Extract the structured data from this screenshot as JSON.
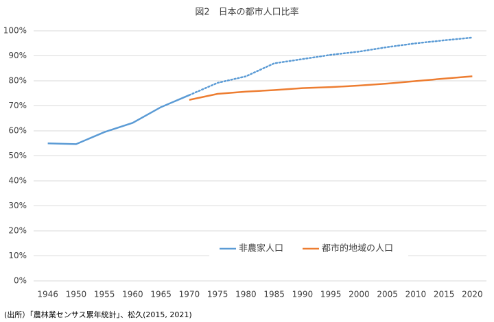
{
  "chart_data": {
    "type": "line",
    "title": "図2　日本の都市人口比率",
    "categories": [
      "1946",
      "1950",
      "1955",
      "1960",
      "1965",
      "1970",
      "1975",
      "1980",
      "1985",
      "1990",
      "1995",
      "2000",
      "2005",
      "2010",
      "2015",
      "2020"
    ],
    "series": [
      {
        "name": "非農家人口",
        "color": "#5b9bd5",
        "values": [
          55.0,
          54.7,
          59.5,
          63.2,
          69.5,
          74.3,
          79.2,
          81.8,
          87.0,
          88.7,
          90.4,
          91.7,
          93.5,
          95.0,
          96.2,
          97.3
        ],
        "styles": [
          "solid",
          "solid",
          "solid",
          "solid",
          "solid",
          "solid",
          "dotted",
          "dotted",
          "dotted",
          "dotted",
          "dotted",
          "dotted",
          "dotted",
          "dotted",
          "dotted",
          "dotted"
        ]
      },
      {
        "name": "都市的地域の人口",
        "color": "#ed7d31",
        "values": [
          null,
          null,
          null,
          null,
          null,
          72.4,
          74.8,
          75.7,
          76.3,
          77.1,
          77.5,
          78.1,
          78.9,
          79.9,
          80.9,
          81.8
        ],
        "styles": [
          "solid",
          "solid",
          "solid",
          "solid",
          "solid",
          "solid",
          "solid",
          "solid",
          "solid",
          "solid",
          "solid",
          "solid",
          "solid",
          "solid",
          "solid",
          "solid"
        ]
      }
    ],
    "ylim": [
      0,
      100
    ],
    "yticks": [
      {
        "value": 0,
        "label": "0%"
      },
      {
        "value": 10,
        "label": "10%"
      },
      {
        "value": 20,
        "label": "20%"
      },
      {
        "value": 30,
        "label": "30%"
      },
      {
        "value": 40,
        "label": "40%"
      },
      {
        "value": 50,
        "label": "50%"
      },
      {
        "value": 60,
        "label": "60%"
      },
      {
        "value": 70,
        "label": "70%"
      },
      {
        "value": 80,
        "label": "80%"
      },
      {
        "value": 90,
        "label": "90%"
      },
      {
        "value": 100,
        "label": "100%"
      }
    ],
    "grid": true,
    "legend": "bottom",
    "source": "(出所）「農林業センサス累年統計」、松久(2015, 2021)"
  }
}
